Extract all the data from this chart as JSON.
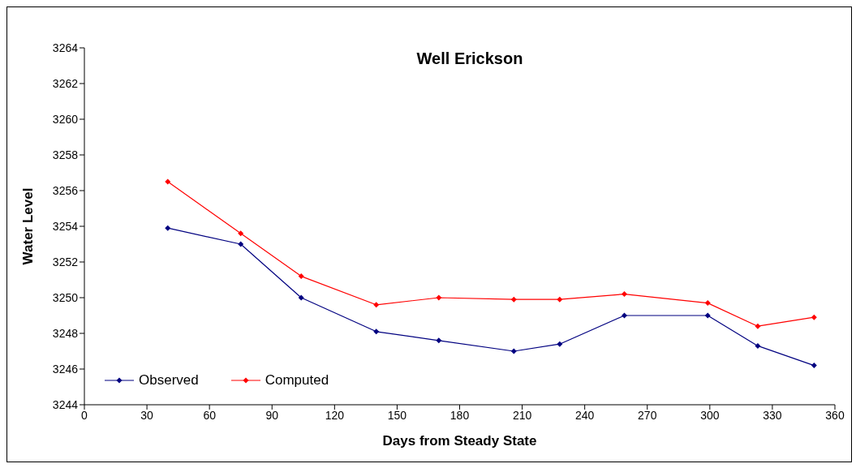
{
  "chart_data": {
    "type": "line",
    "title": "Well Erickson",
    "xlabel": "Days from Steady State",
    "ylabel": "Water Level",
    "x": [
      40,
      75,
      104,
      140,
      170,
      206,
      228,
      259,
      299,
      323,
      350
    ],
    "series": [
      {
        "name": "Observed",
        "color": "#000080",
        "values": [
          3253.9,
          3253.0,
          3250.0,
          3248.1,
          3247.6,
          3247.0,
          3247.4,
          3249.0,
          3249.0,
          3247.3,
          3246.2
        ]
      },
      {
        "name": "Computed",
        "color": "#ff0000",
        "values": [
          3256.5,
          3253.6,
          3251.2,
          3249.6,
          3250.0,
          3249.9,
          3249.9,
          3250.2,
          3249.7,
          3248.4,
          3248.9
        ]
      }
    ],
    "xlim": [
      0,
      360
    ],
    "xticks": [
      0,
      30,
      60,
      90,
      120,
      150,
      180,
      210,
      240,
      270,
      300,
      330,
      360
    ],
    "ylim": [
      3244,
      3264
    ],
    "yticks": [
      3244,
      3246,
      3248,
      3250,
      3252,
      3254,
      3256,
      3258,
      3260,
      3262,
      3264
    ],
    "marker": "diamond",
    "line_style": "solid",
    "legend": "bottom left",
    "grid": false
  }
}
